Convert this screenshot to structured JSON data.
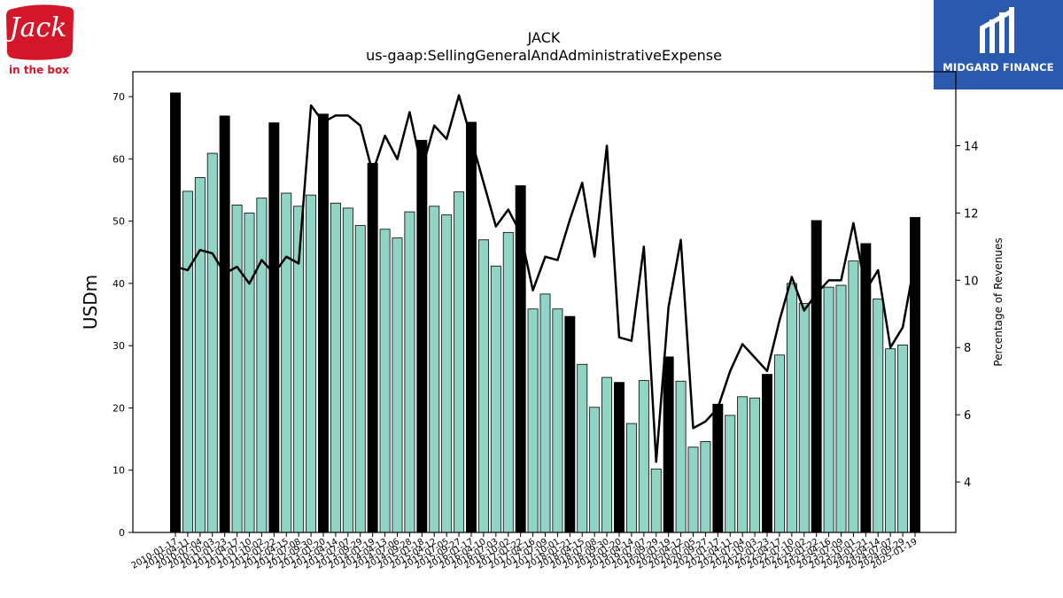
{
  "logos": {
    "left": {
      "name": "Jack in the box",
      "word": "Jack",
      "sub": "in the box",
      "color": "#d3162a"
    },
    "right": {
      "name": "MIDGARD FINANCE",
      "color": "#2a59ad"
    }
  },
  "chart_data": {
    "type": "bar",
    "title": "JACK",
    "subtitle": "us-gaap:SellingGeneralAndAdministrativeExpense",
    "ylabel": "USDm",
    "y2label": "Percentage of Revenues",
    "ylim": [
      0,
      74
    ],
    "y2lim": [
      2.5,
      16.2
    ],
    "yticks": [
      0,
      10,
      20,
      30,
      40,
      50,
      60,
      70
    ],
    "y2ticks": [
      4,
      6,
      8,
      10,
      12,
      14
    ],
    "grid": false,
    "colors": {
      "annual": "#000000",
      "quarter": "#8fd4c4",
      "line": "#000000"
    },
    "categories": [
      "2010-01-17",
      "2010-04-11",
      "2010-07-04",
      "2010-10-03",
      "2011-01-23",
      "2011-04-17",
      "2011-07-10",
      "2011-10-02",
      "2012-01-22",
      "2012-04-15",
      "2012-07-08",
      "2012-09-30",
      "2013-01-20",
      "2013-04-14",
      "2013-07-07",
      "2013-09-29",
      "2014-01-19",
      "2014-04-13",
      "2014-07-06",
      "2014-09-28",
      "2015-01-18",
      "2015-04-12",
      "2015-07-05",
      "2015-09-27",
      "2016-01-17",
      "2016-04-10",
      "2016-07-03",
      "2016-10-02",
      "2017-01-22",
      "2017-04-16",
      "2017-07-09",
      "2017-10-01",
      "2018-01-21",
      "2018-04-15",
      "2018-07-08",
      "2018-09-30",
      "2019-01-20",
      "2019-04-14",
      "2019-07-07",
      "2019-09-29",
      "2020-01-19",
      "2020-04-12",
      "2020-07-05",
      "2020-09-27",
      "2021-01-17",
      "2021-04-11",
      "2021-07-04",
      "2021-10-03",
      "2022-01-23",
      "2022-04-17",
      "2022-07-10",
      "2022-10-02",
      "2023-01-22",
      "2023-04-16",
      "2023-07-09",
      "2023-10-01",
      "2024-01-21",
      "2024-04-14",
      "2024-07-07",
      "2024-09-29",
      "2025-01-19"
    ],
    "annual_flags": [
      1,
      0,
      0,
      0,
      1,
      0,
      0,
      0,
      1,
      0,
      0,
      0,
      1,
      0,
      0,
      0,
      1,
      0,
      0,
      0,
      1,
      0,
      0,
      0,
      1,
      0,
      0,
      0,
      1,
      0,
      0,
      0,
      1,
      0,
      0,
      0,
      1,
      0,
      0,
      0,
      1,
      0,
      0,
      0,
      1,
      0,
      0,
      0,
      1,
      0,
      0,
      0,
      1,
      0,
      0,
      0,
      1,
      0,
      0,
      0,
      1
    ],
    "values": [
      70.6,
      54.8,
      57.0,
      60.9,
      66.9,
      52.6,
      51.3,
      53.7,
      65.8,
      54.5,
      52.4,
      54.2,
      67.2,
      52.9,
      52.1,
      49.3,
      59.3,
      48.7,
      47.3,
      51.5,
      63.0,
      52.4,
      51.0,
      54.7,
      65.9,
      47.0,
      42.8,
      48.2,
      55.7,
      35.9,
      38.3,
      35.9,
      34.7,
      27.0,
      20.1,
      24.9,
      24.1,
      17.5,
      24.4,
      10.2,
      28.2,
      24.3,
      13.7,
      14.6,
      20.6,
      18.8,
      21.8,
      21.6,
      25.4,
      28.5,
      40.0,
      36.8,
      50.1,
      39.4,
      39.7,
      43.6,
      46.4,
      37.5,
      29.5,
      30.1,
      50.6
    ],
    "series": [
      {
        "name": "Percentage of Revenues",
        "values": [
          10.4,
          10.3,
          10.9,
          10.8,
          10.2,
          10.4,
          9.9,
          10.6,
          10.2,
          10.7,
          10.5,
          15.2,
          14.7,
          14.9,
          14.9,
          14.6,
          13.2,
          14.3,
          13.6,
          15.0,
          13.3,
          14.6,
          14.2,
          15.5,
          14.2,
          12.9,
          11.6,
          12.1,
          11.4,
          9.7,
          10.7,
          10.6,
          11.8,
          12.9,
          10.7,
          14.0,
          8.3,
          8.2,
          11.0,
          4.6,
          9.2,
          11.2,
          5.6,
          5.8,
          6.2,
          7.3,
          8.1,
          7.7,
          7.3,
          8.8,
          10.1,
          9.1,
          9.6,
          10.0,
          10.0,
          11.7,
          9.7,
          10.3,
          8.0,
          8.6,
          10.6
        ]
      }
    ]
  }
}
